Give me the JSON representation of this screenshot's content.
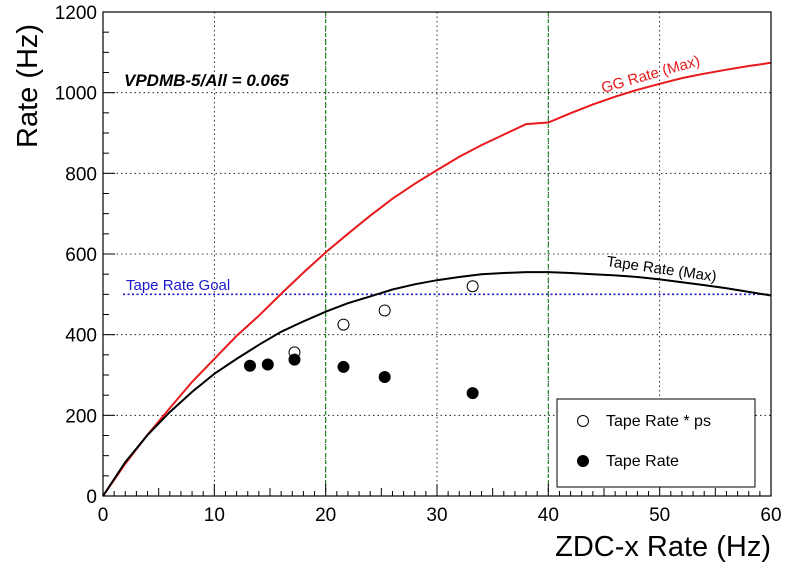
{
  "chart_data": {
    "type": "scatter",
    "title": "",
    "xlabel": "ZDC-x Rate (Hz)",
    "ylabel": "Rate (Hz)",
    "xlim": [
      0,
      60
    ],
    "ylim": [
      0,
      1200
    ],
    "x_ticks": [
      0,
      10,
      20,
      30,
      40,
      50,
      60
    ],
    "y_ticks": [
      0,
      200,
      400,
      600,
      800,
      1000,
      1200
    ],
    "grid": true,
    "annotation": "VPDMB-5/All = 0.065",
    "colors": {
      "gg_curve": "#e8191c",
      "tape_curve": "#000000",
      "goal_line": "#1a1acc",
      "vertical_marker": "#1e8a1e"
    },
    "reference_lines": [
      {
        "type": "horizontal",
        "y": 500,
        "label": "Tape Rate Goal",
        "style": "dotted",
        "color": "#1a1acc"
      },
      {
        "type": "vertical",
        "x": 20,
        "style": "dashed",
        "color": "#1e8a1e"
      },
      {
        "type": "vertical",
        "x": 40,
        "style": "dashed",
        "color": "#1e8a1e"
      }
    ],
    "curves": [
      {
        "name": "GG Rate (Max)",
        "color": "#e8191c",
        "x": [
          0,
          2,
          4,
          6,
          8,
          10,
          12,
          14,
          16,
          18,
          20,
          22,
          24,
          26,
          28,
          30,
          32,
          34,
          36,
          38,
          40,
          42,
          44,
          46,
          48,
          50,
          52,
          54,
          56,
          58,
          60
        ],
        "y": [
          0,
          80,
          152,
          218,
          283,
          340,
          397,
          447,
          501,
          554,
          604,
          650,
          695,
          737,
          774,
          808,
          841,
          870,
          896,
          922,
          926,
          949,
          971,
          990,
          1007,
          1022,
          1036,
          1047,
          1057,
          1066,
          1074
        ]
      },
      {
        "name": "Tape Rate (Max)",
        "color": "#000000",
        "x": [
          0,
          2,
          4,
          6,
          8,
          10,
          12,
          14,
          16,
          18,
          20,
          22,
          24,
          26,
          28,
          30,
          32,
          34,
          36,
          38,
          40,
          42,
          44,
          46,
          48,
          50,
          52,
          54,
          56,
          58,
          60
        ],
        "y": [
          0,
          84,
          151,
          208,
          258,
          303,
          340,
          375,
          407,
          433,
          457,
          478,
          495,
          512,
          525,
          535,
          543,
          550,
          553,
          555,
          555,
          553,
          550,
          547,
          543,
          537,
          530,
          523,
          515,
          506,
          497
        ]
      }
    ],
    "series": [
      {
        "name": "Tape Rate * ps",
        "marker": "open-circle",
        "x": [
          17.2,
          21.6,
          25.3,
          33.2
        ],
        "y": [
          356,
          425,
          460,
          520
        ]
      },
      {
        "name": "Tape Rate",
        "marker": "filled-circle",
        "x": [
          13.2,
          14.8,
          17.2,
          21.6,
          25.3,
          33.2
        ],
        "y": [
          323,
          326,
          338,
          320,
          295,
          255
        ]
      }
    ],
    "legend": {
      "placement": "bottom-right",
      "entries": [
        "Tape Rate * ps",
        "Tape Rate"
      ]
    }
  }
}
